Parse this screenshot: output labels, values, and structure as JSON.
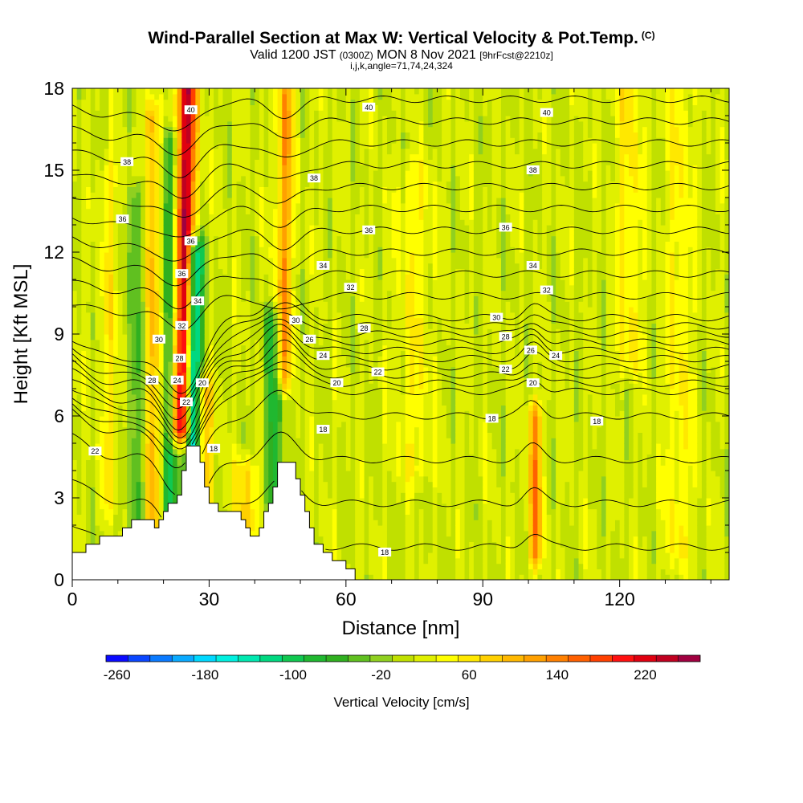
{
  "header": {
    "title": "Wind-Parallel Section at Max W: Vertical Velocity & Pot.Temp.",
    "title_mark": "(C)",
    "subtitle_main_a": "Valid 1200 JST",
    "subtitle_small_a": "(0300Z)",
    "subtitle_main_b": "MON 8 Nov 2021",
    "subtitle_small_b": "[9hrFcst@2210z]",
    "subtitle_line3": "i,j,k,angle=71,74,24,324"
  },
  "chart_data": {
    "type": "heatmap",
    "xlabel": "Distance [nm]",
    "ylabel": "Height [Kft MSL]",
    "xlim": [
      0,
      144
    ],
    "ylim": [
      0,
      18
    ],
    "x_ticks": [
      0,
      30,
      60,
      90,
      120
    ],
    "x_tick_labels": [
      "0",
      "30",
      "60",
      "90",
      "120"
    ],
    "y_ticks": [
      0,
      3,
      6,
      9,
      12,
      15,
      18
    ],
    "y_tick_labels": [
      "0",
      "3",
      "6",
      "9",
      "12",
      "15",
      "18"
    ],
    "colorbar": {
      "title": "Vertical Velocity [cm/s]",
      "min": -270,
      "max": 270,
      "step": 20,
      "labels": [
        "-260",
        "-180",
        "-100",
        "-20",
        "60",
        "140",
        "220"
      ],
      "label_values": [
        -260,
        -180,
        -100,
        -20,
        60,
        140,
        220
      ],
      "colors": [
        "#0a0aff",
        "#0a46ff",
        "#0a7aff",
        "#0aaaff",
        "#00d8ff",
        "#00f0e0",
        "#00e8b0",
        "#00d880",
        "#10c850",
        "#20b830",
        "#30b020",
        "#60c020",
        "#90d020",
        "#c0e000",
        "#e0f000",
        "#ffff00",
        "#ffe800",
        "#ffd000",
        "#ffb800",
        "#ffa000",
        "#ff8000",
        "#ff6000",
        "#ff4000",
        "#ff1010",
        "#e00010",
        "#c00020",
        "#a00040",
        "#800060",
        "#600080"
      ]
    },
    "terrain_profile": [
      [
        0,
        1.0
      ],
      [
        3,
        1.0
      ],
      [
        3,
        1.3
      ],
      [
        6,
        1.3
      ],
      [
        6,
        1.6
      ],
      [
        11,
        1.6
      ],
      [
        11,
        1.9
      ],
      [
        13,
        1.9
      ],
      [
        13,
        2.2
      ],
      [
        18,
        2.2
      ],
      [
        18,
        1.9
      ],
      [
        19,
        1.9
      ],
      [
        19,
        2.2
      ],
      [
        20,
        2.2
      ],
      [
        20,
        2.5
      ],
      [
        21,
        2.5
      ],
      [
        21,
        2.8
      ],
      [
        23,
        2.8
      ],
      [
        23,
        3.1
      ],
      [
        24,
        3.1
      ],
      [
        24,
        4.0
      ],
      [
        25,
        4.0
      ],
      [
        25,
        4.9
      ],
      [
        28,
        4.9
      ],
      [
        28,
        4.3
      ],
      [
        29,
        4.3
      ],
      [
        29,
        3.4
      ],
      [
        30,
        3.4
      ],
      [
        30,
        2.8
      ],
      [
        32,
        2.8
      ],
      [
        32,
        2.5
      ],
      [
        37,
        2.5
      ],
      [
        37,
        2.2
      ],
      [
        38,
        2.2
      ],
      [
        38,
        1.9
      ],
      [
        39,
        1.9
      ],
      [
        39,
        1.6
      ],
      [
        41,
        1.6
      ],
      [
        41,
        1.9
      ],
      [
        42,
        1.9
      ],
      [
        42,
        2.5
      ],
      [
        43,
        2.5
      ],
      [
        43,
        2.8
      ],
      [
        44,
        2.8
      ],
      [
        44,
        3.4
      ],
      [
        45,
        3.4
      ],
      [
        45,
        4.3
      ],
      [
        49,
        4.3
      ],
      [
        49,
        3.7
      ],
      [
        50,
        3.7
      ],
      [
        50,
        3.1
      ],
      [
        51,
        3.1
      ],
      [
        51,
        2.5
      ],
      [
        52,
        2.5
      ],
      [
        52,
        1.9
      ],
      [
        53,
        1.9
      ],
      [
        53,
        1.3
      ],
      [
        55,
        1.3
      ],
      [
        55,
        1.0
      ],
      [
        57,
        1.0
      ],
      [
        57,
        0.7
      ],
      [
        60,
        0.7
      ],
      [
        60,
        0.4
      ],
      [
        62,
        0.4
      ],
      [
        62,
        0.0
      ]
    ],
    "vertical_velocity_features": [
      {
        "x_center": 24.5,
        "x_width": 2.2,
        "y_min": 5.5,
        "y_max": 18,
        "w_peak": 230,
        "lean": 0.12
      },
      {
        "x_center": 26.5,
        "x_width": 1.8,
        "y_min": 1.5,
        "y_max": 12,
        "w_peak": -180,
        "lean": 0.12
      },
      {
        "x_center": 21.5,
        "x_width": 1.6,
        "y_min": 2.5,
        "y_max": 16,
        "w_peak": -100,
        "lean": 0.0
      },
      {
        "x_center": 17.5,
        "x_width": 1.5,
        "y_min": 2.0,
        "y_max": 17,
        "w_peak": 90,
        "lean": 0.0
      },
      {
        "x_center": 14.0,
        "x_width": 1.5,
        "y_min": 1.5,
        "y_max": 14,
        "w_peak": -70,
        "lean": 0.0
      },
      {
        "x_center": 29.0,
        "x_width": 1.8,
        "y_min": 3.0,
        "y_max": 7.0,
        "w_peak": 90,
        "lean": 0.0
      },
      {
        "x_center": 46.5,
        "x_width": 1.8,
        "y_min": 7.5,
        "y_max": 18,
        "w_peak": 110,
        "lean": 0.05
      },
      {
        "x_center": 44.0,
        "x_width": 1.8,
        "y_min": 3.0,
        "y_max": 9.5,
        "w_peak": -90,
        "lean": -0.1
      },
      {
        "x_center": 101.5,
        "x_width": 1.5,
        "y_min": 1.0,
        "y_max": 6.0,
        "w_peak": 120,
        "lean": 0.0
      },
      {
        "x_center": 38.0,
        "x_width": 2.5,
        "y_min": 2.0,
        "y_max": 4.0,
        "w_peak": 70,
        "lean": 0.0
      },
      {
        "x_center": 122.0,
        "x_width": 3.0,
        "y_min": 8.0,
        "y_max": 18,
        "w_peak": 45,
        "lean": 0.0
      },
      {
        "x_center": 133.0,
        "x_width": 3.0,
        "y_min": 1.0,
        "y_max": 18,
        "w_peak": 40,
        "lean": 0.0
      },
      {
        "x_center": 75.0,
        "x_width": 4.0,
        "y_min": 4.0,
        "y_max": 15,
        "w_peak": 35,
        "lean": 0.0
      },
      {
        "x_center": 8.0,
        "x_width": 2.0,
        "y_min": 3.0,
        "y_max": 15,
        "w_peak": 40,
        "lean": 0.0
      }
    ],
    "theta_contour_values": [
      17,
      18,
      19,
      20,
      21,
      22,
      23,
      24,
      25,
      26,
      27,
      28,
      29,
      30,
      31,
      32,
      33,
      34,
      35,
      36,
      37,
      38,
      39,
      40
    ],
    "theta_contour_labels": [
      {
        "text": "40",
        "x": 26.0,
        "y": 17.2
      },
      {
        "text": "40",
        "x": 65.0,
        "y": 17.3
      },
      {
        "text": "40",
        "x": 104.0,
        "y": 17.1
      },
      {
        "text": "38",
        "x": 12.0,
        "y": 15.3
      },
      {
        "text": "38",
        "x": 53.0,
        "y": 14.7
      },
      {
        "text": "38",
        "x": 101.0,
        "y": 15.0
      },
      {
        "text": "36",
        "x": 11.0,
        "y": 13.2
      },
      {
        "text": "36",
        "x": 65.0,
        "y": 12.8
      },
      {
        "text": "36",
        "x": 95.0,
        "y": 12.9
      },
      {
        "text": "36",
        "x": 26.0,
        "y": 12.4
      },
      {
        "text": "36",
        "x": 24.0,
        "y": 11.2
      },
      {
        "text": "34",
        "x": 55.0,
        "y": 11.5
      },
      {
        "text": "34",
        "x": 101.0,
        "y": 11.5
      },
      {
        "text": "34",
        "x": 27.5,
        "y": 10.2
      },
      {
        "text": "32",
        "x": 61.0,
        "y": 10.7
      },
      {
        "text": "32",
        "x": 104.0,
        "y": 10.6
      },
      {
        "text": "32",
        "x": 24.0,
        "y": 9.3
      },
      {
        "text": "30",
        "x": 19.0,
        "y": 8.8
      },
      {
        "text": "30",
        "x": 49.0,
        "y": 9.5
      },
      {
        "text": "30",
        "x": 93.0,
        "y": 9.6
      },
      {
        "text": "28",
        "x": 64.0,
        "y": 9.2
      },
      {
        "text": "28",
        "x": 95.0,
        "y": 8.9
      },
      {
        "text": "28",
        "x": 23.5,
        "y": 8.1
      },
      {
        "text": "28",
        "x": 17.5,
        "y": 7.3
      },
      {
        "text": "26",
        "x": 52.0,
        "y": 8.8
      },
      {
        "text": "26",
        "x": 100.5,
        "y": 8.4
      },
      {
        "text": "24",
        "x": 55.0,
        "y": 8.2
      },
      {
        "text": "24",
        "x": 106.0,
        "y": 8.2
      },
      {
        "text": "24",
        "x": 23.0,
        "y": 7.3
      },
      {
        "text": "22",
        "x": 67.0,
        "y": 7.6
      },
      {
        "text": "22",
        "x": 95.0,
        "y": 7.7
      },
      {
        "text": "22",
        "x": 25.0,
        "y": 6.5
      },
      {
        "text": "22",
        "x": 5.0,
        "y": 4.7
      },
      {
        "text": "20",
        "x": 58.0,
        "y": 7.2
      },
      {
        "text": "20",
        "x": 101.0,
        "y": 7.2
      },
      {
        "text": "20",
        "x": 28.5,
        "y": 7.2
      },
      {
        "text": "18",
        "x": 55.0,
        "y": 5.5
      },
      {
        "text": "18",
        "x": 92.0,
        "y": 5.9
      },
      {
        "text": "18",
        "x": 115.0,
        "y": 5.8
      },
      {
        "text": "18",
        "x": 31.0,
        "y": 4.8
      },
      {
        "text": "18",
        "x": 68.5,
        "y": 1.0
      }
    ]
  }
}
